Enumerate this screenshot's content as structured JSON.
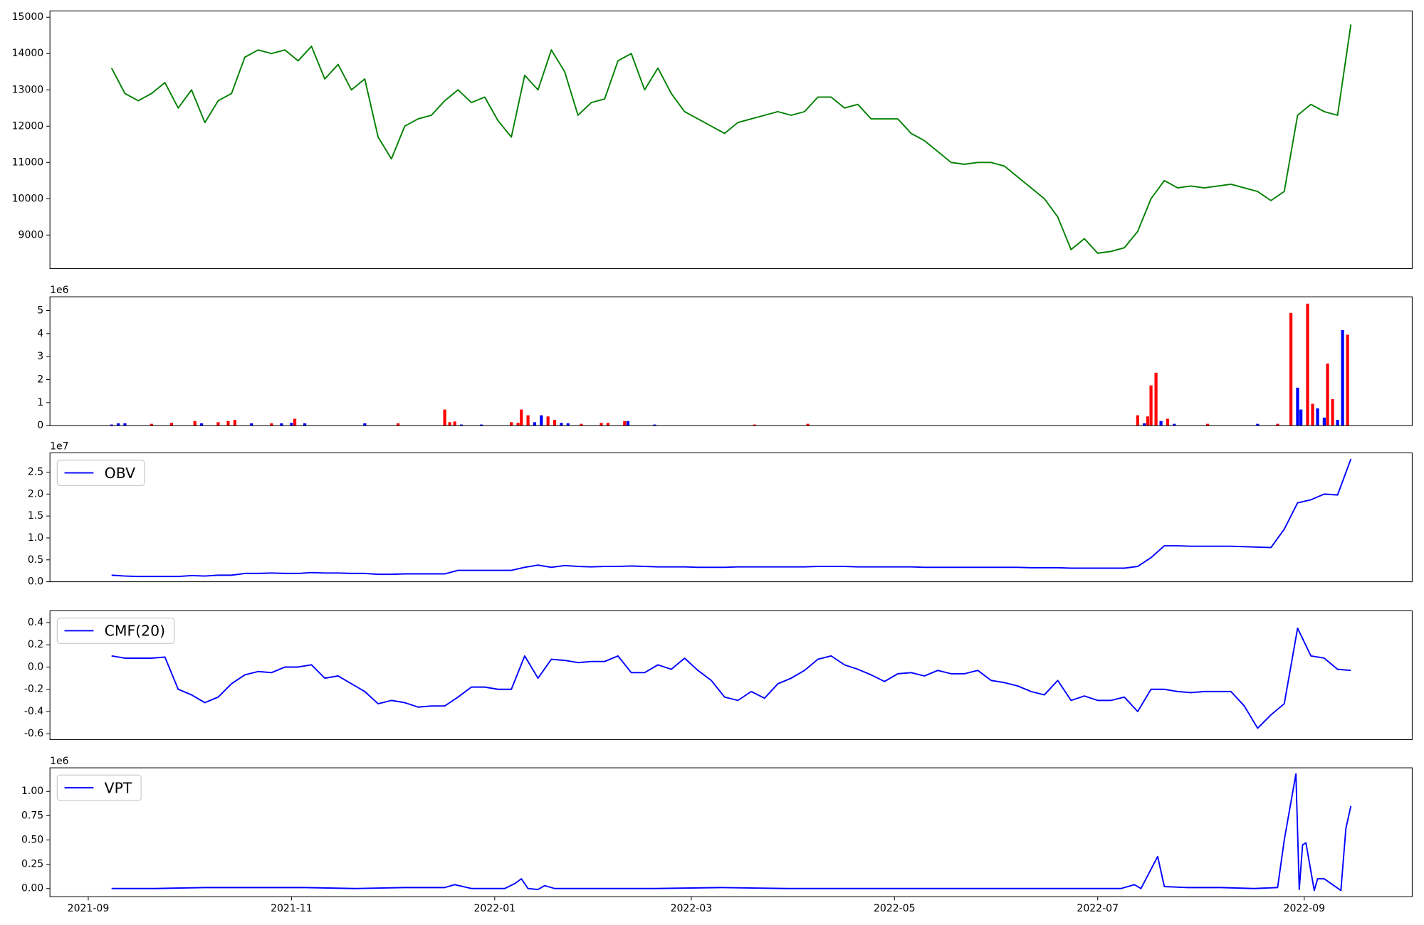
{
  "chart_data": [
    {
      "type": "line",
      "color": "#008000",
      "x": [
        7,
        11,
        15,
        19,
        23,
        27,
        31,
        35,
        39,
        43,
        47,
        51,
        55,
        59,
        63,
        67,
        71,
        75,
        79,
        83,
        87,
        91,
        95,
        99,
        103,
        107,
        111,
        115,
        119,
        123,
        127,
        131,
        135,
        139,
        143,
        147,
        151,
        155,
        159,
        163,
        167,
        171,
        175,
        179,
        183,
        187,
        191,
        195,
        199,
        203,
        207,
        211,
        215,
        219,
        223,
        227,
        231,
        235,
        239,
        243,
        247,
        251,
        255,
        259,
        263,
        267,
        271,
        275,
        279,
        283,
        287,
        291,
        295,
        299,
        303,
        307,
        311,
        315,
        319,
        323,
        327,
        331,
        335,
        339,
        343,
        347,
        351,
        355,
        359,
        363,
        367,
        371,
        375,
        379
      ],
      "values": [
        13600,
        12900,
        12700,
        12900,
        13200,
        12500,
        13000,
        12100,
        12700,
        12900,
        13900,
        14100,
        14000,
        14100,
        13800,
        14200,
        13300,
        13700,
        13000,
        13300,
        11700,
        11100,
        12000,
        12200,
        12300,
        12700,
        13000,
        12650,
        12800,
        12150,
        11700,
        13400,
        13000,
        14100,
        13500,
        12300,
        12650,
        12750,
        13800,
        14000,
        13000,
        13600,
        12900,
        12400,
        12200,
        12000,
        11800,
        12100,
        12200,
        12300,
        12400,
        12300,
        12400,
        12800,
        12800,
        12500,
        12600,
        12200,
        12200,
        12200,
        11800,
        11600,
        11300,
        11000,
        10950,
        11000,
        11000,
        10900,
        10600,
        10300,
        10000,
        9500,
        8600,
        8900,
        8500,
        8550,
        8650,
        9100,
        10000,
        10500,
        10300,
        10350,
        10300,
        10350,
        10400,
        10300,
        10200,
        9950,
        10200,
        12300,
        12600,
        12400,
        12300,
        14800
      ],
      "xlim": [
        -11.5,
        397.4
      ],
      "ylim": [
        8075,
        15175
      ],
      "yticks": [
        9000,
        10000,
        11000,
        12000,
        13000,
        14000,
        15000
      ]
    },
    {
      "type": "bar",
      "offset_label": "1e6",
      "x": [
        7,
        9,
        11,
        19,
        25,
        32,
        34,
        39,
        42,
        44,
        49,
        55,
        58,
        61,
        62,
        65,
        83,
        93,
        107,
        108.5,
        110,
        112,
        118,
        127,
        129,
        130,
        132,
        134,
        136,
        138,
        140,
        142,
        144,
        148,
        154,
        156,
        161,
        162,
        170,
        200,
        216,
        315,
        317,
        318,
        319,
        320.5,
        322,
        324,
        326,
        336,
        351,
        357,
        361,
        363,
        364,
        366,
        367.5,
        369,
        371,
        372,
        373.5,
        375,
        376.5,
        378
      ],
      "values": [
        0.05,
        0.1,
        0.1,
        0.08,
        0.12,
        0.2,
        0.1,
        0.15,
        0.2,
        0.25,
        0.1,
        0.1,
        0.1,
        0.12,
        0.3,
        0.1,
        0.1,
        0.1,
        0.7,
        0.15,
        0.18,
        0.05,
        0.05,
        0.15,
        0.12,
        0.7,
        0.45,
        0.15,
        0.45,
        0.4,
        0.25,
        0.12,
        0.1,
        0.08,
        0.12,
        0.12,
        0.2,
        0.2,
        0.05,
        0.05,
        0.08,
        0.45,
        0.1,
        0.4,
        1.75,
        2.3,
        0.2,
        0.3,
        0.08,
        0.08,
        0.08,
        0.08,
        4.9,
        1.65,
        0.7,
        5.3,
        0.95,
        0.75,
        0.35,
        2.7,
        1.15,
        0.25,
        4.15,
        3.95
      ],
      "colors": [
        "#0000ff",
        "#0000ff",
        "#0000ff",
        "#ff0000",
        "#ff0000",
        "#ff0000",
        "#0000ff",
        "#ff0000",
        "#ff0000",
        "#ff0000",
        "#0000ff",
        "#ff0000",
        "#0000ff",
        "#0000ff",
        "#ff0000",
        "#0000ff",
        "#0000ff",
        "#ff0000",
        "#ff0000",
        "#ff0000",
        "#ff0000",
        "#0000ff",
        "#0000ff",
        "#ff0000",
        "#ff0000",
        "#ff0000",
        "#ff0000",
        "#0000ff",
        "#0000ff",
        "#ff0000",
        "#ff0000",
        "#0000ff",
        "#0000ff",
        "#ff0000",
        "#ff0000",
        "#ff0000",
        "#ff0000",
        "#0000ff",
        "#0000ff",
        "#ff0000",
        "#ff0000",
        "#ff0000",
        "#0000ff",
        "#ff0000",
        "#ff0000",
        "#ff0000",
        "#0000ff",
        "#ff0000",
        "#0000ff",
        "#ff0000",
        "#0000ff",
        "#ff0000",
        "#ff0000",
        "#0000ff",
        "#0000ff",
        "#ff0000",
        "#ff0000",
        "#0000ff",
        "#0000ff",
        "#ff0000",
        "#ff0000",
        "#0000ff",
        "#0000ff",
        "#ff0000"
      ],
      "xlim": [
        -11.5,
        397.4
      ],
      "ylim": [
        0,
        5.6
      ],
      "yticks": [
        0,
        1,
        2,
        3,
        4,
        5
      ]
    },
    {
      "type": "line",
      "offset_label": "1e7",
      "legend": "upper left",
      "x": [
        7,
        11,
        15,
        19,
        23,
        27,
        31,
        35,
        39,
        43,
        47,
        51,
        55,
        59,
        63,
        67,
        71,
        75,
        79,
        83,
        87,
        91,
        95,
        99,
        103,
        107,
        111,
        115,
        119,
        123,
        127,
        131,
        135,
        139,
        143,
        147,
        151,
        155,
        159,
        163,
        167,
        171,
        175,
        179,
        183,
        187,
        191,
        195,
        199,
        203,
        207,
        211,
        215,
        219,
        223,
        227,
        231,
        235,
        239,
        243,
        247,
        251,
        255,
        259,
        263,
        267,
        271,
        275,
        279,
        283,
        287,
        291,
        295,
        299,
        303,
        307,
        311,
        315,
        319,
        323,
        327,
        331,
        335,
        339,
        343,
        347,
        351,
        355,
        359,
        363,
        367,
        371,
        375,
        379
      ],
      "series": [
        {
          "name": "OBV",
          "color": "#0000ff",
          "values": [
            0.15,
            0.13,
            0.12,
            0.12,
            0.12,
            0.12,
            0.14,
            0.13,
            0.15,
            0.15,
            0.19,
            0.19,
            0.2,
            0.19,
            0.19,
            0.21,
            0.2,
            0.2,
            0.19,
            0.19,
            0.17,
            0.17,
            0.18,
            0.18,
            0.18,
            0.18,
            0.26,
            0.26,
            0.26,
            0.26,
            0.26,
            0.33,
            0.38,
            0.33,
            0.37,
            0.35,
            0.34,
            0.35,
            0.35,
            0.36,
            0.35,
            0.34,
            0.34,
            0.34,
            0.33,
            0.33,
            0.33,
            0.34,
            0.34,
            0.34,
            0.34,
            0.34,
            0.34,
            0.35,
            0.35,
            0.35,
            0.34,
            0.34,
            0.34,
            0.34,
            0.34,
            0.33,
            0.33,
            0.33,
            0.33,
            0.33,
            0.33,
            0.33,
            0.33,
            0.32,
            0.32,
            0.32,
            0.31,
            0.31,
            0.31,
            0.31,
            0.31,
            0.35,
            0.55,
            0.82,
            0.82,
            0.81,
            0.81,
            0.81,
            0.81,
            0.8,
            0.79,
            0.78,
            1.2,
            1.8,
            1.87,
            2.0,
            1.98,
            2.8
          ]
        }
      ],
      "xlim": [
        -11.5,
        397.4
      ],
      "ylim": [
        0,
        2.94
      ],
      "yticks": [
        {
          "value": 0,
          "label": "0.0"
        },
        0.5,
        {
          "value": 1,
          "label": "1.0"
        },
        1.5,
        {
          "value": 2,
          "label": "2.0"
        },
        2.5
      ]
    },
    {
      "type": "line",
      "legend": "upper left",
      "x": [
        7,
        11,
        15,
        19,
        23,
        27,
        31,
        35,
        39,
        43,
        47,
        51,
        55,
        59,
        63,
        67,
        71,
        75,
        79,
        83,
        87,
        91,
        95,
        99,
        103,
        107,
        111,
        115,
        119,
        123,
        127,
        131,
        135,
        139,
        143,
        147,
        151,
        155,
        159,
        163,
        167,
        171,
        175,
        179,
        183,
        187,
        191,
        195,
        199,
        203,
        207,
        211,
        215,
        219,
        223,
        227,
        231,
        235,
        239,
        243,
        247,
        251,
        255,
        259,
        263,
        267,
        271,
        275,
        279,
        283,
        287,
        291,
        295,
        299,
        303,
        307,
        311,
        315,
        319,
        323,
        327,
        331,
        335,
        339,
        343,
        347,
        351,
        355,
        359,
        363,
        367,
        371,
        375,
        379
      ],
      "series": [
        {
          "name": "CMF(20)",
          "color": "#0000ff",
          "values": [
            0.1,
            0.08,
            0.08,
            0.08,
            0.09,
            -0.2,
            -0.25,
            -0.32,
            -0.27,
            -0.15,
            -0.07,
            -0.04,
            -0.05,
            0.0,
            0.0,
            0.02,
            -0.1,
            -0.08,
            -0.15,
            -0.22,
            -0.33,
            -0.3,
            -0.32,
            -0.36,
            -0.35,
            -0.35,
            -0.27,
            -0.18,
            -0.18,
            -0.2,
            -0.2,
            0.1,
            -0.1,
            0.07,
            0.06,
            0.04,
            0.05,
            0.05,
            0.1,
            -0.05,
            -0.05,
            0.02,
            -0.02,
            0.08,
            -0.03,
            -0.12,
            -0.27,
            -0.3,
            -0.22,
            -0.28,
            -0.15,
            -0.1,
            -0.03,
            0.07,
            0.1,
            0.02,
            -0.02,
            -0.07,
            -0.13,
            -0.06,
            -0.05,
            -0.08,
            -0.03,
            -0.06,
            -0.06,
            -0.03,
            -0.12,
            -0.14,
            -0.17,
            -0.22,
            -0.25,
            -0.12,
            -0.3,
            -0.26,
            -0.3,
            -0.3,
            -0.27,
            -0.4,
            -0.2,
            -0.2,
            -0.22,
            -0.23,
            -0.22,
            -0.22,
            -0.22,
            -0.35,
            -0.55,
            -0.43,
            -0.33,
            0.35,
            0.1,
            0.08,
            -0.02,
            -0.03
          ]
        }
      ],
      "xlim": [
        -11.5,
        397.4
      ],
      "ylim": [
        -0.653,
        0.506
      ],
      "yticks": [
        -0.6,
        -0.4,
        -0.2,
        {
          "value": 0,
          "label": "0.0"
        },
        0.2,
        0.4
      ]
    },
    {
      "type": "line",
      "offset_label": "1e6",
      "legend": "upper left",
      "x": [
        7,
        20,
        35,
        50,
        65,
        80,
        95,
        107,
        110,
        115,
        125,
        128,
        130,
        132,
        135,
        137,
        140,
        150,
        170,
        190,
        210,
        230,
        250,
        270,
        290,
        310,
        314,
        316,
        321,
        323,
        330,
        340,
        350,
        357,
        359,
        362.5,
        363.5,
        364.5,
        365.5,
        368,
        369,
        371,
        376,
        377.5,
        379
      ],
      "series": [
        {
          "name": "VPT",
          "color": "#0000ff",
          "values": [
            0,
            0,
            0.01,
            0.01,
            0.01,
            0,
            0.01,
            0.01,
            0.04,
            0,
            0,
            0.05,
            0.1,
            0,
            -0.01,
            0.03,
            0,
            0,
            0,
            0.01,
            0,
            0,
            0,
            0,
            0,
            0,
            0.04,
            0,
            0.33,
            0.02,
            0.01,
            0.01,
            0,
            0.01,
            0.5,
            1.18,
            -0.01,
            0.45,
            0.47,
            -0.02,
            0.1,
            0.1,
            -0.02,
            0.62,
            0.85
          ]
        }
      ],
      "xlim": [
        -11.5,
        397.4
      ],
      "ylim": [
        -0.084,
        1.243
      ],
      "yticks": [
        {
          "value": 0,
          "label": "0.00"
        },
        0.25,
        {
          "value": 0.5,
          "label": "0.50"
        },
        0.75,
        {
          "value": 1,
          "label": "1.00"
        }
      ],
      "xticks": [
        {
          "value": 0,
          "label": "2021-09"
        },
        {
          "value": 61,
          "label": "2021-11"
        },
        {
          "value": 122,
          "label": "2022-01"
        },
        {
          "value": 181,
          "label": "2022-03"
        },
        {
          "value": 242,
          "label": "2022-05"
        },
        {
          "value": 303,
          "label": "2022-07"
        },
        {
          "value": 365,
          "label": "2022-09"
        }
      ]
    }
  ]
}
